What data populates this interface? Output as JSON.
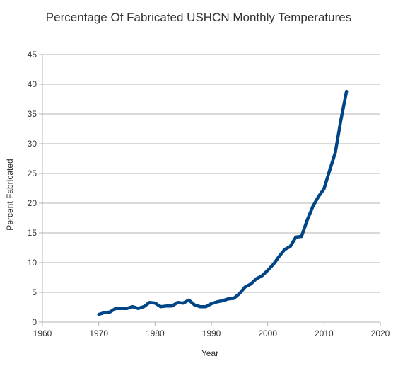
{
  "colors": {
    "series": "#004586",
    "grid": "#b3b3b3",
    "text": "#333333"
  },
  "chart_data": {
    "type": "line",
    "title": "Percentage Of Fabricated USHCN Monthly Temperatures",
    "xlabel": "Year",
    "ylabel": "Percent Fabricated",
    "xlim": [
      1960,
      2020
    ],
    "ylim": [
      0,
      45
    ],
    "xticks": [
      1960,
      1970,
      1980,
      1990,
      2000,
      2010,
      2020
    ],
    "yticks": [
      0,
      5,
      10,
      15,
      20,
      25,
      30,
      35,
      40,
      45
    ],
    "grid": "horizontal",
    "legend": "none",
    "series": [
      {
        "x": [
          1970,
          1971,
          1972,
          1973,
          1974,
          1975,
          1976,
          1977,
          1978,
          1979,
          1980,
          1981,
          1982,
          1983,
          1984,
          1985,
          1986,
          1987,
          1988,
          1989,
          1990,
          1991,
          1992,
          1993,
          1994,
          1995,
          1996,
          1997,
          1998,
          1999,
          2000,
          2001,
          2002,
          2003,
          2004,
          2005,
          2006,
          2007,
          2008,
          2009,
          2010,
          2011,
          2012,
          2013,
          2014
        ],
        "values": [
          1.3,
          1.6,
          1.7,
          2.3,
          2.3,
          2.3,
          2.6,
          2.3,
          2.6,
          3.3,
          3.2,
          2.6,
          2.7,
          2.7,
          3.3,
          3.2,
          3.7,
          2.9,
          2.6,
          2.6,
          3.1,
          3.4,
          3.6,
          3.9,
          4.0,
          4.8,
          5.9,
          6.4,
          7.3,
          7.8,
          8.7,
          9.7,
          11.0,
          12.2,
          12.7,
          14.3,
          14.4,
          17.1,
          19.4,
          21.1,
          22.4,
          25.5,
          28.5,
          34.0,
          38.8
        ]
      }
    ]
  }
}
